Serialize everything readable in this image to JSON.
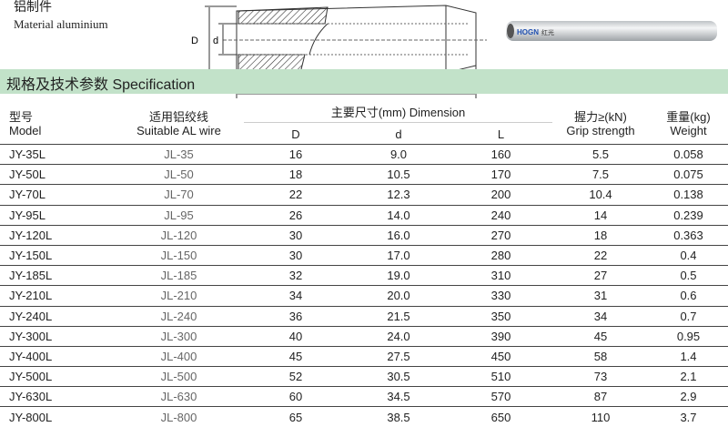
{
  "header": {
    "cn_title": "铝制件",
    "material": "Material aluminium"
  },
  "diagram": {
    "label_D": "D",
    "label_d": "d",
    "label_L": "L"
  },
  "product_photo": {
    "logo": "HOGN 红光"
  },
  "banner": {
    "title": "规格及技术参数  Specification",
    "color": "#c2e2c9"
  },
  "table": {
    "headers": {
      "model_cn": "型号",
      "model_en": "Model",
      "wire_cn": "适用铝绞线",
      "wire_en": "Suitable AL wire",
      "dim": "主要尺寸(mm)  Dimension",
      "D": "D",
      "d": "d",
      "L": "L",
      "grip_cn": "握力≥(kN)",
      "grip_en": "Grip strength",
      "weight_cn": "重量(kg)",
      "weight_en": "Weight"
    },
    "rows": [
      [
        "JY-35L",
        "JL-35",
        "16",
        "9.0",
        "160",
        "5.5",
        "0.058"
      ],
      [
        "JY-50L",
        "JL-50",
        "18",
        "10.5",
        "170",
        "7.5",
        "0.075"
      ],
      [
        "JY-70L",
        "JL-70",
        "22",
        "12.3",
        "200",
        "10.4",
        "0.138"
      ],
      [
        "JY-95L",
        "JL-95",
        "26",
        "14.0",
        "240",
        "14",
        "0.239"
      ],
      [
        "JY-120L",
        "JL-120",
        "30",
        "16.0",
        "270",
        "18",
        "0.363"
      ],
      [
        "JY-150L",
        "JL-150",
        "30",
        "17.0",
        "280",
        "22",
        "0.4"
      ],
      [
        "JY-185L",
        "JL-185",
        "32",
        "19.0",
        "310",
        "27",
        "0.5"
      ],
      [
        "JY-210L",
        "JL-210",
        "34",
        "20.0",
        "330",
        "31",
        "0.6"
      ],
      [
        "JY-240L",
        "JL-240",
        "36",
        "21.5",
        "350",
        "34",
        "0.7"
      ],
      [
        "JY-300L",
        "JL-300",
        "40",
        "24.0",
        "390",
        "45",
        "0.95"
      ],
      [
        "JY-400L",
        "JL-400",
        "45",
        "27.5",
        "450",
        "58",
        "1.4"
      ],
      [
        "JY-500L",
        "JL-500",
        "52",
        "30.5",
        "510",
        "73",
        "2.1"
      ],
      [
        "JY-630L",
        "JL-630",
        "60",
        "34.5",
        "570",
        "87",
        "2.9"
      ],
      [
        "JY-800L",
        "JL-800",
        "65",
        "38.5",
        "650",
        "110",
        "3.7"
      ]
    ]
  }
}
